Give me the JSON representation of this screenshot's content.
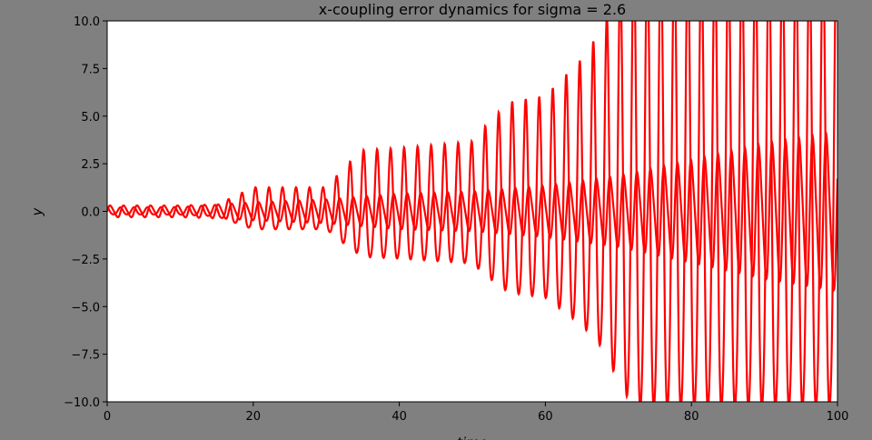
{
  "chart_data": {
    "type": "line",
    "title": "x-coupling error dynamics for sigma = 2.6",
    "xlabel": "time",
    "ylabel": "y",
    "xlim": [
      0,
      100
    ],
    "ylim": [
      -10,
      10
    ],
    "xticks": [
      0,
      20,
      40,
      60,
      80,
      100
    ],
    "yticks": [
      -10.0,
      -7.5,
      -5.0,
      -2.5,
      0.0,
      2.5,
      5.0,
      7.5,
      10.0
    ],
    "xtick_labels": [
      "0",
      "20",
      "40",
      "60",
      "80",
      "100"
    ],
    "ytick_labels": [
      "−10.0",
      "−7.5",
      "−5.0",
      "−2.5",
      "0.0",
      "2.5",
      "5.0",
      "7.5",
      "10.0"
    ],
    "grid": false,
    "line_color": "#ff0000",
    "background_color": "#808080",
    "plot_background": "#ffffff",
    "series": [
      {
        "period": 1.85,
        "envelope": [
          [
            0,
            0.3
          ],
          [
            10,
            0.3
          ],
          [
            15,
            0.35
          ],
          [
            20,
            0.45
          ],
          [
            30,
            0.6
          ],
          [
            40,
            0.9
          ],
          [
            50,
            1.0
          ],
          [
            60,
            1.3
          ],
          [
            70,
            1.8
          ],
          [
            80,
            2.6
          ],
          [
            90,
            3.4
          ],
          [
            100,
            4.0
          ]
        ]
      },
      {
        "period": 1.85,
        "envelope": [
          [
            0,
            0.18
          ],
          [
            10,
            0.2
          ],
          [
            15,
            0.3
          ],
          [
            20,
            1.1
          ],
          [
            30,
            1.1
          ],
          [
            33,
            2.2
          ],
          [
            35,
            2.8
          ],
          [
            40,
            2.9
          ],
          [
            50,
            3.2
          ],
          [
            52,
            4.0
          ],
          [
            55,
            5.0
          ],
          [
            60,
            5.3
          ],
          [
            65,
            7.0
          ],
          [
            68,
            8.5
          ],
          [
            70,
            10.5
          ],
          [
            72,
            12
          ],
          [
            80,
            12
          ],
          [
            100,
            12
          ]
        ]
      }
    ]
  }
}
